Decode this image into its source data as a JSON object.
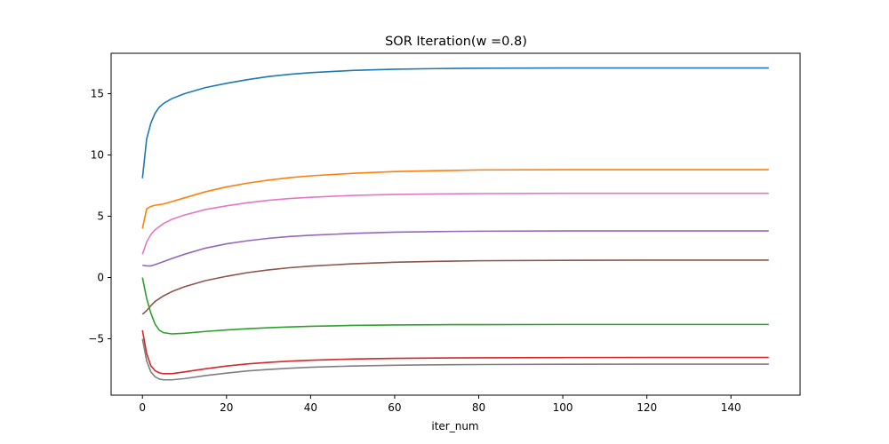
{
  "chart_data": {
    "type": "line",
    "title": "SOR Iteration(w =0.8)",
    "xlabel": "iter_num",
    "ylabel": "",
    "xlim": [
      -7.45,
      156.45
    ],
    "ylim": [
      -9.6,
      18.3
    ],
    "xticks": [
      0,
      20,
      40,
      60,
      80,
      100,
      120,
      140
    ],
    "yticks": [
      -5,
      0,
      5,
      10,
      15
    ],
    "ytick_labels": [
      "−5",
      "0",
      "5",
      "10",
      "15"
    ],
    "grid": false,
    "legend": "none",
    "series": [
      {
        "color": "#1f77b4",
        "points": [
          [
            0,
            8.1
          ],
          [
            1,
            11.3
          ],
          [
            2,
            12.6
          ],
          [
            3,
            13.4
          ],
          [
            4,
            13.9
          ],
          [
            5,
            14.2
          ],
          [
            7,
            14.6
          ],
          [
            10,
            15.0
          ],
          [
            15,
            15.5
          ],
          [
            20,
            15.85
          ],
          [
            25,
            16.15
          ],
          [
            30,
            16.4
          ],
          [
            35,
            16.58
          ],
          [
            40,
            16.72
          ],
          [
            50,
            16.9
          ],
          [
            60,
            17.0
          ],
          [
            70,
            17.05
          ],
          [
            80,
            17.08
          ],
          [
            100,
            17.1
          ],
          [
            120,
            17.1
          ],
          [
            149,
            17.1
          ]
        ]
      },
      {
        "color": "#ff7f0e",
        "points": [
          [
            0,
            4.0
          ],
          [
            1,
            5.6
          ],
          [
            2,
            5.8
          ],
          [
            3,
            5.9
          ],
          [
            5,
            6.0
          ],
          [
            7,
            6.2
          ],
          [
            10,
            6.5
          ],
          [
            15,
            7.0
          ],
          [
            20,
            7.4
          ],
          [
            25,
            7.7
          ],
          [
            30,
            7.95
          ],
          [
            35,
            8.15
          ],
          [
            40,
            8.3
          ],
          [
            50,
            8.5
          ],
          [
            60,
            8.65
          ],
          [
            70,
            8.72
          ],
          [
            80,
            8.78
          ],
          [
            100,
            8.8
          ],
          [
            120,
            8.8
          ],
          [
            149,
            8.8
          ]
        ]
      },
      {
        "color": "#e377c2",
        "points": [
          [
            0,
            1.9
          ],
          [
            1,
            2.9
          ],
          [
            2,
            3.5
          ],
          [
            3,
            3.9
          ],
          [
            5,
            4.4
          ],
          [
            7,
            4.75
          ],
          [
            10,
            5.1
          ],
          [
            15,
            5.55
          ],
          [
            20,
            5.85
          ],
          [
            25,
            6.1
          ],
          [
            30,
            6.3
          ],
          [
            35,
            6.45
          ],
          [
            40,
            6.55
          ],
          [
            50,
            6.7
          ],
          [
            60,
            6.78
          ],
          [
            70,
            6.82
          ],
          [
            80,
            6.85
          ],
          [
            100,
            6.87
          ],
          [
            120,
            6.87
          ],
          [
            149,
            6.87
          ]
        ]
      },
      {
        "color": "#9467bd",
        "points": [
          [
            0,
            1.0
          ],
          [
            1,
            0.95
          ],
          [
            2,
            0.95
          ],
          [
            3,
            1.05
          ],
          [
            5,
            1.3
          ],
          [
            7,
            1.55
          ],
          [
            10,
            1.9
          ],
          [
            15,
            2.4
          ],
          [
            20,
            2.75
          ],
          [
            25,
            3.0
          ],
          [
            30,
            3.2
          ],
          [
            35,
            3.35
          ],
          [
            40,
            3.45
          ],
          [
            50,
            3.6
          ],
          [
            60,
            3.7
          ],
          [
            70,
            3.75
          ],
          [
            80,
            3.78
          ],
          [
            100,
            3.8
          ],
          [
            120,
            3.8
          ],
          [
            149,
            3.8
          ]
        ]
      },
      {
        "color": "#8c564b",
        "points": [
          [
            0,
            -3.0
          ],
          [
            1,
            -2.7
          ],
          [
            2,
            -2.3
          ],
          [
            3,
            -1.95
          ],
          [
            5,
            -1.5
          ],
          [
            7,
            -1.15
          ],
          [
            10,
            -0.75
          ],
          [
            15,
            -0.25
          ],
          [
            20,
            0.1
          ],
          [
            25,
            0.4
          ],
          [
            30,
            0.62
          ],
          [
            35,
            0.8
          ],
          [
            40,
            0.93
          ],
          [
            50,
            1.12
          ],
          [
            60,
            1.25
          ],
          [
            70,
            1.32
          ],
          [
            80,
            1.37
          ],
          [
            100,
            1.4
          ],
          [
            120,
            1.42
          ],
          [
            149,
            1.42
          ]
        ]
      },
      {
        "color": "#2ca02c",
        "points": [
          [
            0,
            0.0
          ],
          [
            1,
            -1.7
          ],
          [
            2,
            -2.9
          ],
          [
            3,
            -3.8
          ],
          [
            4,
            -4.3
          ],
          [
            5,
            -4.5
          ],
          [
            7,
            -4.6
          ],
          [
            10,
            -4.55
          ],
          [
            15,
            -4.4
          ],
          [
            20,
            -4.28
          ],
          [
            25,
            -4.18
          ],
          [
            30,
            -4.1
          ],
          [
            35,
            -4.03
          ],
          [
            40,
            -3.98
          ],
          [
            50,
            -3.91
          ],
          [
            60,
            -3.87
          ],
          [
            70,
            -3.85
          ],
          [
            80,
            -3.84
          ],
          [
            100,
            -3.83
          ],
          [
            120,
            -3.83
          ],
          [
            149,
            -3.83
          ]
        ]
      },
      {
        "color": "#d62728",
        "points": [
          [
            0,
            -4.3
          ],
          [
            1,
            -6.2
          ],
          [
            2,
            -7.2
          ],
          [
            3,
            -7.6
          ],
          [
            4,
            -7.78
          ],
          [
            5,
            -7.85
          ],
          [
            7,
            -7.85
          ],
          [
            10,
            -7.7
          ],
          [
            15,
            -7.45
          ],
          [
            20,
            -7.22
          ],
          [
            25,
            -7.05
          ],
          [
            30,
            -6.92
          ],
          [
            35,
            -6.82
          ],
          [
            40,
            -6.75
          ],
          [
            50,
            -6.65
          ],
          [
            60,
            -6.6
          ],
          [
            70,
            -6.57
          ],
          [
            80,
            -6.55
          ],
          [
            100,
            -6.53
          ],
          [
            120,
            -6.52
          ],
          [
            149,
            -6.52
          ]
        ]
      },
      {
        "color": "#7f7f7f",
        "points": [
          [
            0,
            -5.0
          ],
          [
            1,
            -6.8
          ],
          [
            2,
            -7.7
          ],
          [
            3,
            -8.1
          ],
          [
            4,
            -8.28
          ],
          [
            5,
            -8.35
          ],
          [
            7,
            -8.35
          ],
          [
            10,
            -8.25
          ],
          [
            15,
            -8.0
          ],
          [
            20,
            -7.8
          ],
          [
            25,
            -7.62
          ],
          [
            30,
            -7.5
          ],
          [
            35,
            -7.4
          ],
          [
            40,
            -7.32
          ],
          [
            50,
            -7.22
          ],
          [
            60,
            -7.16
          ],
          [
            70,
            -7.12
          ],
          [
            80,
            -7.1
          ],
          [
            100,
            -7.08
          ],
          [
            120,
            -7.07
          ],
          [
            149,
            -7.07
          ]
        ]
      }
    ]
  }
}
